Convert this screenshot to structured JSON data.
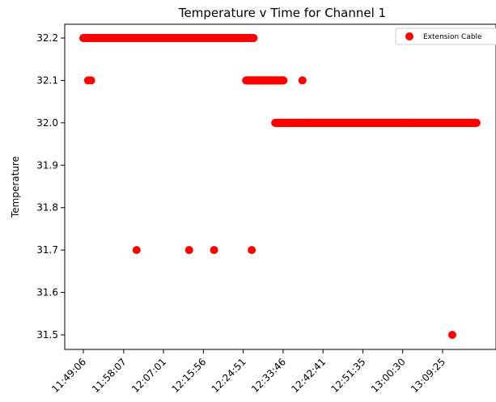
{
  "chart_data": {
    "type": "scatter",
    "title": "Temperature v Time for Channel 1",
    "xlabel": "",
    "ylabel": "Temperature",
    "ylim": [
      31.47,
      32.235
    ],
    "yticks": [
      "31.5",
      "31.6",
      "31.7",
      "31.8",
      "31.9",
      "32.0",
      "32.1",
      "32.2"
    ],
    "xticks": [
      "11:49:06",
      "11:58:07",
      "12:07:01",
      "12:15:56",
      "12:24:51",
      "12:33:46",
      "12:42:41",
      "12:51:35",
      "13:00:30",
      "13:09:25"
    ],
    "xlim_seconds": [
      41946,
      47880
    ],
    "legend_position": "top-right",
    "series": [
      {
        "name": "Extension Cable",
        "color": "#ff0000",
        "runs": [
          {
            "x_start": "11:49:06",
            "x_end": "12:27:15",
            "y": 32.2
          },
          {
            "x_start": "12:25:30",
            "x_end": "12:33:50",
            "y": 32.1
          },
          {
            "x_start": "12:32:00",
            "x_end": "13:17:00",
            "y": 32.0
          }
        ],
        "points": [
          {
            "x": "11:50:10",
            "y": 32.1
          },
          {
            "x": "11:50:50",
            "y": 32.1
          },
          {
            "x": "12:01:00",
            "y": 31.7
          },
          {
            "x": "12:12:45",
            "y": 31.7
          },
          {
            "x": "12:18:20",
            "y": 31.7
          },
          {
            "x": "12:26:45",
            "y": 31.7
          },
          {
            "x": "12:38:05",
            "y": 32.1
          },
          {
            "x": "13:11:35",
            "y": 31.5
          }
        ]
      }
    ]
  }
}
